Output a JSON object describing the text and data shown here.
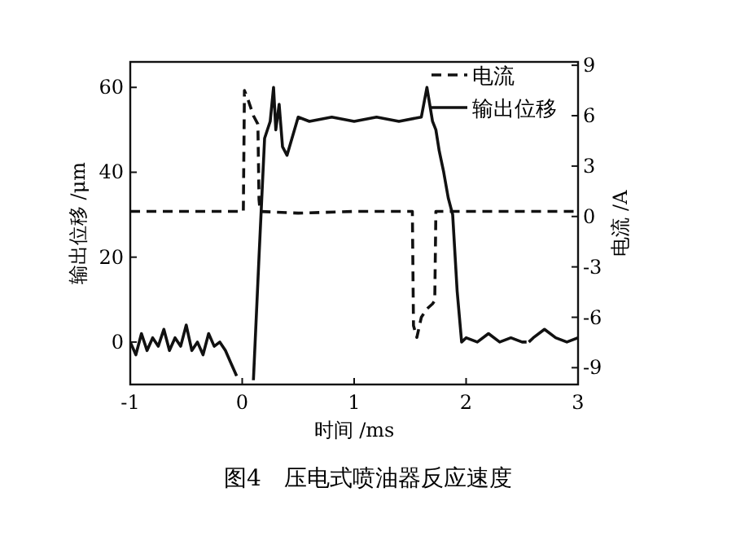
{
  "chart_data": {
    "type": "line",
    "xlabel": "时间 /ms",
    "ylabel": "输出位移 /μm",
    "y2label": "电流 /A",
    "xlim": [
      -1,
      3
    ],
    "xticks": [
      -1,
      0,
      1,
      2,
      3
    ],
    "ylim": [
      -10,
      66
    ],
    "yticks": [
      0,
      20,
      40,
      60
    ],
    "y2lim": [
      -10,
      9.2
    ],
    "y2ticks": [
      -9,
      -6,
      -3,
      0,
      3,
      6,
      9
    ],
    "grid": false,
    "legend": "top right",
    "series": [
      {
        "name": "电流",
        "color": "#111111",
        "axis": "y2",
        "line_style": "dashed",
        "x": [
          -1,
          0.01,
          0.02,
          0.05,
          0.1,
          0.14,
          0.15,
          0.16,
          0.5,
          1.0,
          1.5,
          1.52,
          1.53,
          1.56,
          1.6,
          1.65,
          1.7,
          1.72,
          1.73,
          1.75,
          2.0,
          2.5,
          3
        ],
        "values": [
          0.3,
          0.3,
          7.5,
          7,
          6,
          5.5,
          1,
          0.3,
          0.2,
          0.3,
          0.3,
          0.3,
          -6.5,
          -7.2,
          -6,
          -5.5,
          -5.2,
          -5,
          0.3,
          0.3,
          0.3,
          0.3,
          0.3
        ]
      },
      {
        "name": "输出位移",
        "color": "#111111",
        "line_style": "solid",
        "x": [
          -1,
          -0.95,
          -0.9,
          -0.85,
          -0.8,
          -0.75,
          -0.7,
          -0.65,
          -0.6,
          -0.55,
          -0.5,
          -0.45,
          -0.4,
          -0.35,
          -0.3,
          -0.25,
          -0.2,
          -0.15,
          -0.1,
          -0.05,
          0,
          0.05,
          0.1,
          0.15,
          0.2,
          0.25,
          0.28,
          0.3,
          0.33,
          0.36,
          0.4,
          0.5,
          0.6,
          0.8,
          1.0,
          1.2,
          1.4,
          1.6,
          1.65,
          1.7,
          1.73,
          1.76,
          1.8,
          1.84,
          1.88,
          1.92,
          1.96,
          2.0,
          2.1,
          2.2,
          2.3,
          2.4,
          2.5,
          2.54,
          2.55,
          2.56,
          2.6,
          2.7,
          2.8,
          2.9,
          3
        ],
        "values": [
          0,
          -3,
          2,
          -2,
          1,
          -1,
          3,
          -2,
          1,
          -1,
          4,
          -2,
          0,
          -3,
          2,
          -1,
          0,
          -2,
          -5,
          -8,
          null,
          null,
          -9,
          20,
          48,
          52,
          60,
          50,
          56,
          46,
          44,
          53,
          52,
          53,
          52,
          53,
          52,
          53,
          60,
          52,
          50,
          45,
          40,
          34,
          30,
          12,
          0,
          1,
          0,
          2,
          0,
          1,
          0,
          0,
          null,
          0,
          1,
          3,
          1,
          0,
          1
        ]
      }
    ],
    "annotations": [
      "图4　压电式喷油器反应速度"
    ]
  }
}
